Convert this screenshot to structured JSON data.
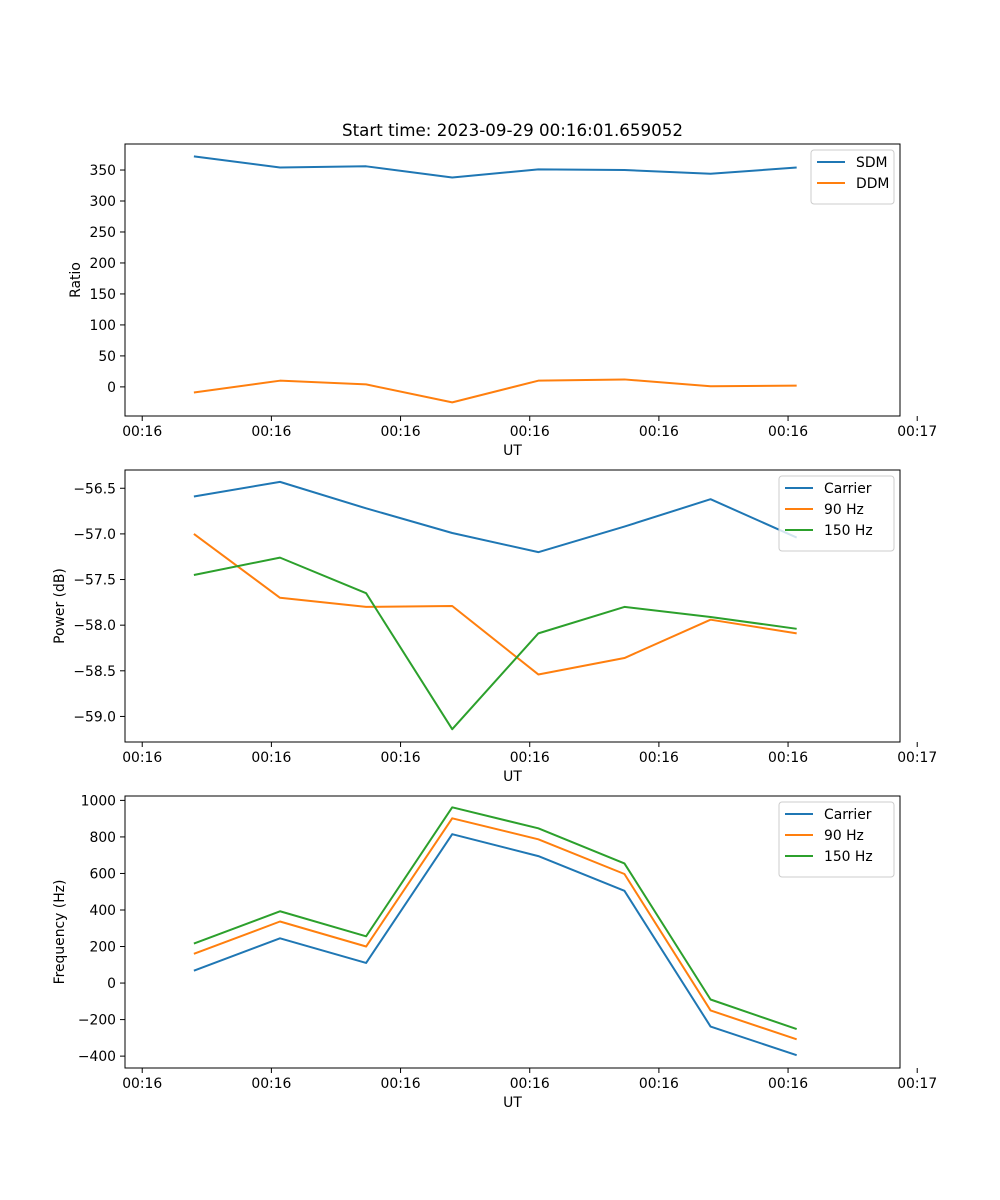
{
  "chart_data": [
    {
      "type": "line",
      "title": "Start time: 2023-09-29 00:16:01.659052",
      "xlabel": "UT",
      "ylabel": "Ratio",
      "x": [
        1,
        2,
        3,
        4,
        5,
        6,
        7,
        8
      ],
      "xlim": [
        0.2,
        9.2
      ],
      "xticks": [
        0.4,
        1.9,
        3.4,
        4.9,
        6.4,
        7.9,
        9.4
      ],
      "xtick_labels": [
        "00:16",
        "00:16",
        "00:16",
        "00:16",
        "00:16",
        "00:16",
        "00:17"
      ],
      "ylim": [
        -47,
        392
      ],
      "yticks": [
        0,
        50,
        100,
        150,
        200,
        250,
        300,
        350
      ],
      "ytick_labels": [
        "0",
        "50",
        "100",
        "150",
        "200",
        "250",
        "300",
        "350"
      ],
      "legend": "top-right",
      "grid": false,
      "series": [
        {
          "name": "SDM",
          "color": "#1f77b4",
          "values": [
            372,
            354,
            356,
            338,
            351,
            350,
            344,
            354
          ]
        },
        {
          "name": "DDM",
          "color": "#ff7f0e",
          "values": [
            -9,
            10,
            4,
            -25,
            10,
            12,
            1,
            2
          ]
        }
      ]
    },
    {
      "type": "line",
      "title": "",
      "xlabel": "UT",
      "ylabel": "Power (dB)",
      "x": [
        1,
        2,
        3,
        4,
        5,
        6,
        7,
        8
      ],
      "xlim": [
        0.2,
        9.2
      ],
      "xticks": [
        0.4,
        1.9,
        3.4,
        4.9,
        6.4,
        7.9,
        9.4
      ],
      "xtick_labels": [
        "00:16",
        "00:16",
        "00:16",
        "00:16",
        "00:16",
        "00:16",
        "00:17"
      ],
      "ylim": [
        -59.28,
        -56.3
      ],
      "yticks": [
        -59.0,
        -58.5,
        -58.0,
        -57.5,
        -57.0,
        -56.5
      ],
      "ytick_labels": [
        "−59.0",
        "−58.5",
        "−58.0",
        "−57.5",
        "−57.0",
        "−56.5"
      ],
      "legend": "top-right",
      "grid": false,
      "series": [
        {
          "name": "Carrier",
          "color": "#1f77b4",
          "values": [
            -56.59,
            -56.43,
            -56.72,
            -56.99,
            -57.2,
            -56.92,
            -56.62,
            -57.04
          ]
        },
        {
          "name": "90 Hz",
          "color": "#ff7f0e",
          "values": [
            -57.0,
            -57.7,
            -57.8,
            -57.79,
            -58.54,
            -58.36,
            -57.94,
            -58.09
          ]
        },
        {
          "name": "150 Hz",
          "color": "#2ca02c",
          "values": [
            -57.45,
            -57.26,
            -57.65,
            -59.14,
            -58.09,
            -57.8,
            -57.91,
            -58.04
          ]
        }
      ]
    },
    {
      "type": "line",
      "title": "",
      "xlabel": "UT",
      "ylabel": "Frequency (Hz)",
      "x": [
        1,
        2,
        3,
        4,
        5,
        6,
        7,
        8
      ],
      "xlim": [
        0.2,
        9.2
      ],
      "xticks": [
        0.4,
        1.9,
        3.4,
        4.9,
        6.4,
        7.9,
        9.4
      ],
      "xtick_labels": [
        "00:16",
        "00:16",
        "00:16",
        "00:16",
        "00:16",
        "00:16",
        "00:17"
      ],
      "ylim": [
        -465,
        1024
      ],
      "yticks": [
        -400,
        -200,
        0,
        200,
        400,
        600,
        800,
        1000
      ],
      "ytick_labels": [
        "−400",
        "−200",
        "0",
        "200",
        "400",
        "600",
        "800",
        "1000"
      ],
      "legend": "top-right",
      "grid": false,
      "series": [
        {
          "name": "Carrier",
          "color": "#1f77b4",
          "values": [
            68,
            245,
            110,
            815,
            695,
            505,
            -238,
            -395
          ]
        },
        {
          "name": "90 Hz",
          "color": "#ff7f0e",
          "values": [
            160,
            337,
            200,
            902,
            787,
            597,
            -150,
            -308
          ]
        },
        {
          "name": "150 Hz",
          "color": "#2ca02c",
          "values": [
            216,
            393,
            256,
            962,
            847,
            655,
            -90,
            -252
          ]
        }
      ]
    }
  ]
}
